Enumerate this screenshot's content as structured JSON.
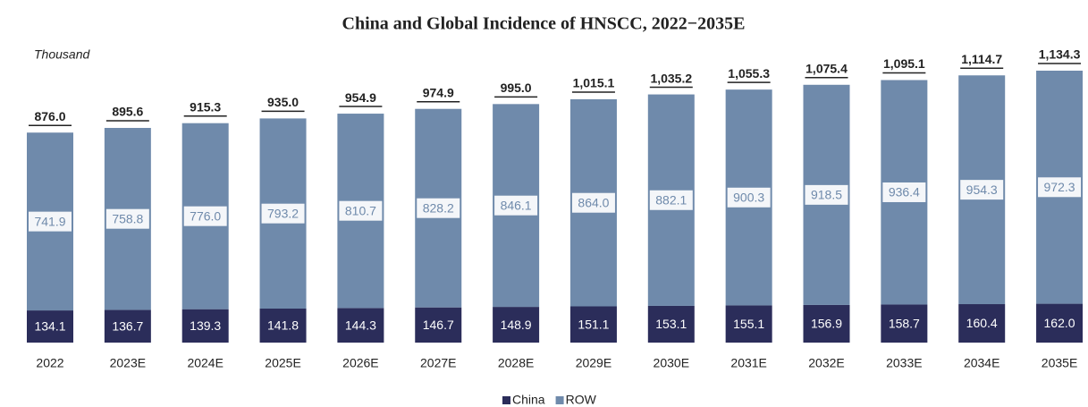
{
  "chart_data": {
    "type": "stacked_bar",
    "title": "China and Global Incidence of HNSCC, 2022−2035E",
    "y_axis_label": "Thousand",
    "categories": [
      "2022",
      "2023E",
      "2024E",
      "2025E",
      "2026E",
      "2027E",
      "2028E",
      "2029E",
      "2030E",
      "2031E",
      "2032E",
      "2033E",
      "2034E",
      "2035E"
    ],
    "series": [
      {
        "name": "China",
        "color": "#2b2d5a",
        "values": [
          134.1,
          136.7,
          139.3,
          141.8,
          144.3,
          146.7,
          148.9,
          151.1,
          153.1,
          155.1,
          156.9,
          158.7,
          160.4,
          162.0
        ],
        "value_labels": [
          "134.1",
          "136.7",
          "139.3",
          "141.8",
          "144.3",
          "146.7",
          "148.9",
          "151.1",
          "153.1",
          "155.1",
          "156.9",
          "158.7",
          "160.4",
          "162.0"
        ]
      },
      {
        "name": "ROW",
        "color": "#6f8aab",
        "values": [
          741.9,
          758.8,
          776.0,
          793.2,
          810.7,
          828.2,
          846.1,
          864.0,
          882.1,
          900.3,
          918.5,
          936.4,
          954.3,
          972.3
        ],
        "value_labels": [
          "741.9",
          "758.8",
          "776.0",
          "793.2",
          "810.7",
          "828.2",
          "846.1",
          "864.0",
          "882.1",
          "900.3",
          "918.5",
          "936.4",
          "954.3",
          "972.3"
        ]
      }
    ],
    "totals": [
      876.0,
      895.6,
      915.3,
      935.0,
      954.9,
      974.9,
      995.0,
      1015.1,
      1035.2,
      1055.3,
      1075.4,
      1095.1,
      1114.7,
      1134.3
    ],
    "total_labels": [
      "876.0",
      "895.6",
      "915.3",
      "935.0",
      "954.9",
      "974.9",
      "995.0",
      "1,015.1",
      "1,035.2",
      "1,055.3",
      "1,075.4",
      "1,095.1",
      "1,114.7",
      "1,134.3"
    ],
    "legend": "bottom"
  }
}
